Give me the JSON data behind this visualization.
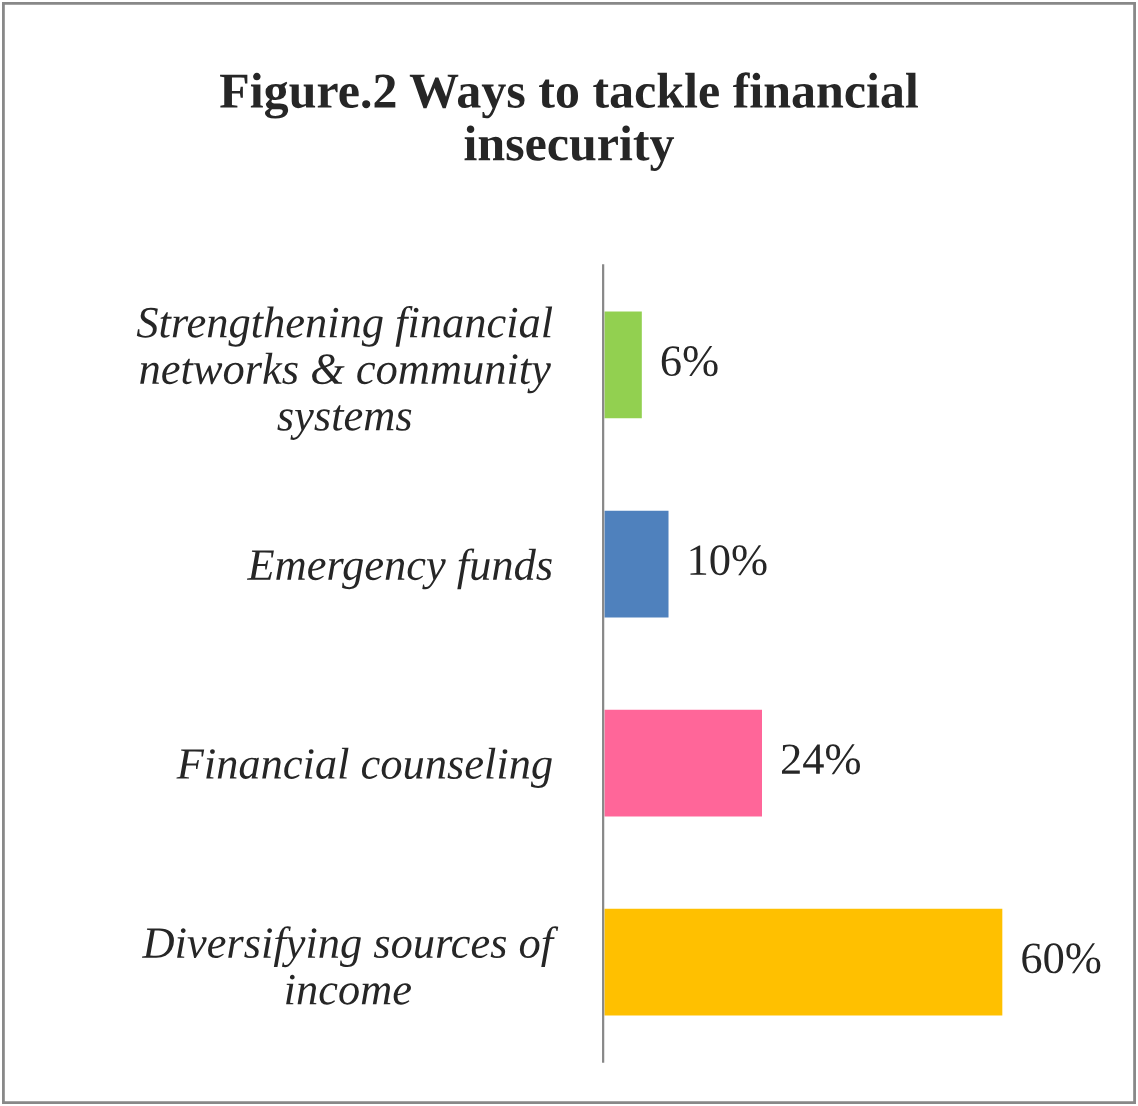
{
  "chart_data": {
    "type": "bar",
    "orientation": "horizontal",
    "title": "Figure.2 Ways to tackle financial\ninsecurity",
    "categories": [
      "Strengthening financial\nnetworks & community\nsystems",
      "Emergency funds",
      "Financial counseling",
      "Diversifying sources of\nincome"
    ],
    "values": [
      6,
      10,
      24,
      60
    ],
    "colors": [
      "#92d050",
      "#4f81bd",
      "#ff6699",
      "#ffc000"
    ],
    "value_labels": [
      "6%",
      "10%",
      "24%",
      "60%"
    ],
    "grid": false,
    "legend": false
  }
}
